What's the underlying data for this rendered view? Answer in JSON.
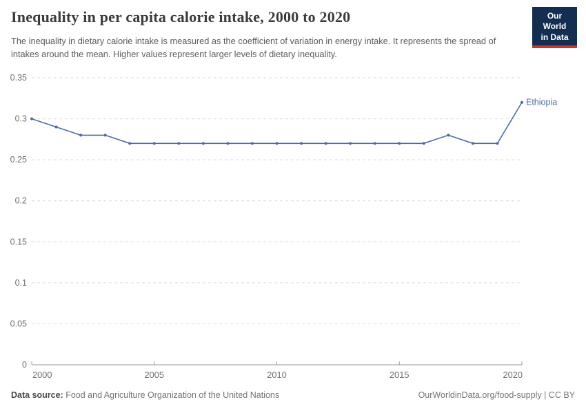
{
  "header": {
    "title": "Inequality in per capita calorie intake, 2000 to 2020",
    "subtitle": "The inequality in dietary calorie intake is measured as the coefficient of variation in energy intake. It represents the spread of intakes around the mean. Higher values represent larger levels of dietary inequality.",
    "logo": {
      "line1": "Our World",
      "line2": "in Data"
    }
  },
  "footer": {
    "datasource_label": "Data source:",
    "datasource_text": " Food and Agriculture Organization of the United Nations",
    "credit": "OurWorldinData.org/food-supply | CC BY"
  },
  "colors": {
    "line": "#4c6ba9",
    "gridline": "#d9d9d9",
    "axis": "#999999",
    "tick_label": "#6e6e6e",
    "logo_bg": "#142e52",
    "logo_red": "#c8372d"
  },
  "chart_data": {
    "type": "line",
    "title": "Inequality in per capita calorie intake, 2000 to 2020",
    "xlabel": "",
    "ylabel": "",
    "xlim": [
      2000,
      2020
    ],
    "ylim": [
      0,
      0.35
    ],
    "grid": "horizontal-dashed",
    "legend_position": "end-of-line-label",
    "xticks": [
      2000,
      2005,
      2010,
      2015,
      2020
    ],
    "yticks": [
      0,
      0.05,
      0.1,
      0.15,
      0.2,
      0.25,
      0.3,
      0.35
    ],
    "x": [
      2000,
      2001,
      2002,
      2003,
      2004,
      2005,
      2006,
      2007,
      2008,
      2009,
      2010,
      2011,
      2012,
      2013,
      2014,
      2015,
      2016,
      2017,
      2018,
      2019,
      2020
    ],
    "series": [
      {
        "name": "Ethiopia",
        "color": "#4c6ba9",
        "values": [
          0.3,
          0.29,
          0.28,
          0.28,
          0.27,
          0.27,
          0.27,
          0.27,
          0.27,
          0.27,
          0.27,
          0.27,
          0.27,
          0.27,
          0.27,
          0.27,
          0.27,
          0.28,
          0.27,
          0.27,
          0.32
        ]
      }
    ]
  }
}
